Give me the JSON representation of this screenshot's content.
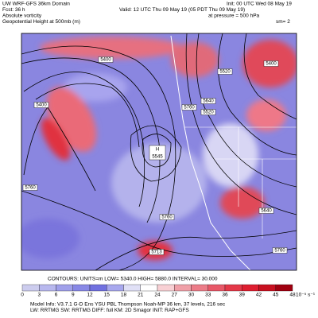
{
  "header": {
    "left": [
      "UW WRF-GFS 36km Domain",
      "Fcst:   36 h",
      "Absolute vorticity",
      "Geopotential Height at 500mb (m)"
    ],
    "right": [
      "Init: 00 UTC Wed 08 May 19",
      "Valid: 12 UTC Thu 09 May 19 (05 PDT Thu 09 May 19)",
      "at pressure =  500 hPa",
      "sm= 2"
    ]
  },
  "map": {
    "contour_labels": [
      "5400",
      "5520",
      "5400",
      "5400",
      "5760",
      "5640",
      "5520",
      "5760",
      "5760",
      "5640",
      "5713",
      "5760"
    ],
    "high": {
      "symbol": "H",
      "value": "5545"
    }
  },
  "footer": {
    "contours": "CONTOURS:  UNITS=m  LOW=   5340.0   HIGH=   5880.0   INTERVAL=   30.000",
    "colorbar": {
      "ticks": [
        0,
        3,
        6,
        9,
        12,
        15,
        18,
        21,
        24,
        27,
        30,
        33,
        36,
        39,
        42,
        45,
        48
      ],
      "units": "10⁻⁵ s⁻¹"
    },
    "model_info": [
      "Model Info: V3.7.1   G-D Ens YSU PBL   Thompson   Noah-MP   36 km, 37 levels, 216 sec",
      "LW: RRTMG   SW: RRTMG   DIFF: full   KM: 2D Smagor   INIT: RAP+GFS"
    ]
  }
}
